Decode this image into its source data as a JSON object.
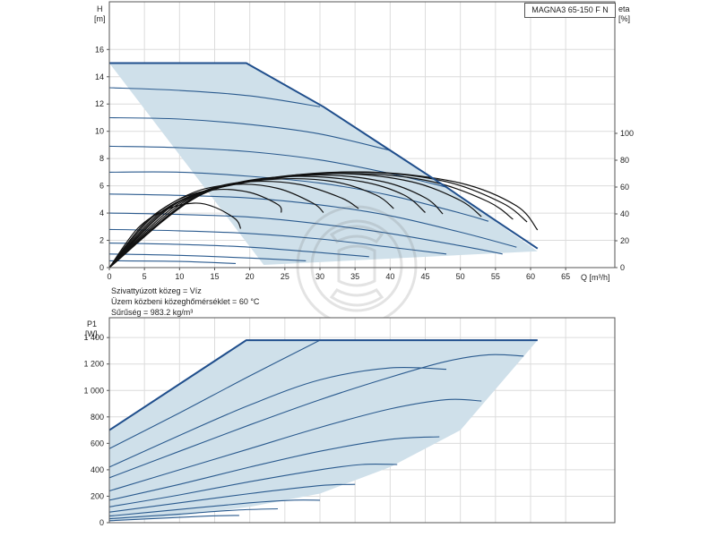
{
  "model_label": "MAGNA3 65-150 F N",
  "fluid_info": [
    "Szivattyúzott közeg = Víz",
    "Üzem közbeni közeghőmérséklet = 60 °C",
    "Sűrűség = 983.2 kg/m³"
  ],
  "colors": {
    "envelope_fill": "#cfe0ea",
    "envelope_line": "#1f4e8c",
    "curve": "#2a5a8e",
    "efficiency": "#111111",
    "frame": "#555555",
    "grid": "#dcdcdc"
  },
  "chart_data": [
    {
      "type": "line",
      "xlabel": "Q [m³/h]",
      "ylabel_line1": "H",
      "ylabel_line2": "[m]",
      "y2label_line1": "eta",
      "y2label_line2": "[%]",
      "xlim": [
        0,
        72
      ],
      "ylim": [
        0,
        19.5
      ],
      "y2lim": [
        0,
        100
      ],
      "x_ticks": [
        0,
        5,
        10,
        15,
        20,
        25,
        30,
        35,
        40,
        45,
        50,
        55,
        60,
        65
      ],
      "y_ticks": [
        0,
        2,
        4,
        6,
        8,
        10,
        12,
        14,
        16
      ],
      "y2_ticks": [
        0,
        20,
        40,
        60,
        80,
        100
      ],
      "grid": true,
      "envelope": [
        [
          0,
          15
        ],
        [
          19.5,
          15
        ],
        [
          30.5,
          11.8
        ],
        [
          48,
          5.9
        ],
        [
          61,
          1.2
        ],
        [
          22,
          0.2
        ]
      ],
      "envelope_top": [
        [
          0,
          15
        ],
        [
          19.5,
          15
        ],
        [
          30.5,
          11.8
        ],
        [
          40,
          8.6
        ],
        [
          48,
          5.9
        ],
        [
          54,
          3.8
        ],
        [
          61,
          1.4
        ]
      ],
      "speed_curves": [
        {
          "name": "",
          "points": [
            [
              0,
              13.2
            ],
            [
              10,
              13.0
            ],
            [
              20,
              12.6
            ],
            [
              30,
              11.8
            ]
          ]
        },
        {
          "name": "",
          "points": [
            [
              0,
              11.0
            ],
            [
              10,
              10.9
            ],
            [
              20,
              10.5
            ],
            [
              30,
              9.8
            ],
            [
              40,
              8.6
            ]
          ]
        },
        {
          "name": "",
          "points": [
            [
              0,
              8.9
            ],
            [
              10,
              8.8
            ],
            [
              20,
              8.5
            ],
            [
              30,
              7.9
            ],
            [
              40,
              6.9
            ],
            [
              48,
              5.9
            ]
          ]
        },
        {
          "name": "",
          "points": [
            [
              0,
              7.0
            ],
            [
              10,
              7.0
            ],
            [
              20,
              6.7
            ],
            [
              30,
              6.2
            ],
            [
              40,
              5.3
            ],
            [
              50,
              4.0
            ],
            [
              54,
              3.4
            ]
          ]
        },
        {
          "name": "",
          "points": [
            [
              0,
              5.4
            ],
            [
              10,
              5.3
            ],
            [
              20,
              5.1
            ],
            [
              30,
              4.6
            ],
            [
              40,
              3.8
            ],
            [
              50,
              2.6
            ],
            [
              58,
              1.5
            ]
          ]
        },
        {
          "name": "",
          "points": [
            [
              0,
              4.0
            ],
            [
              10,
              3.9
            ],
            [
              20,
              3.7
            ],
            [
              30,
              3.2
            ],
            [
              40,
              2.5
            ],
            [
              50,
              1.6
            ],
            [
              56,
              1.0
            ]
          ]
        },
        {
          "name": "",
          "points": [
            [
              0,
              2.8
            ],
            [
              10,
              2.7
            ],
            [
              20,
              2.5
            ],
            [
              30,
              2.1
            ],
            [
              40,
              1.5
            ],
            [
              48,
              1.0
            ]
          ]
        },
        {
          "name": "",
          "points": [
            [
              0,
              1.8
            ],
            [
              10,
              1.7
            ],
            [
              20,
              1.5
            ],
            [
              30,
              1.1
            ],
            [
              37,
              0.8
            ]
          ]
        },
        {
          "name": "",
          "points": [
            [
              0,
              1.0
            ],
            [
              10,
              0.9
            ],
            [
              20,
              0.7
            ],
            [
              28,
              0.5
            ]
          ]
        },
        {
          "name": "",
          "points": [
            [
              0,
              0.5
            ],
            [
              10,
              0.45
            ],
            [
              18,
              0.3
            ]
          ]
        }
      ],
      "efficiency_curves": [
        {
          "name": "",
          "points": [
            [
              0,
              0
            ],
            [
              4,
              29
            ],
            [
              8,
              43
            ],
            [
              12,
              48
            ],
            [
              15,
              45
            ],
            [
              18,
              36
            ],
            [
              18.7,
              29
            ]
          ]
        },
        {
          "name": "",
          "points": [
            [
              0,
              0
            ],
            [
              5,
              33
            ],
            [
              10,
              51
            ],
            [
              15,
              58
            ],
            [
              20,
              56
            ],
            [
              24,
              47
            ],
            [
              24.5,
              41
            ]
          ]
        },
        {
          "name": "",
          "points": [
            [
              0,
              0
            ],
            [
              6,
              37
            ],
            [
              12,
              56
            ],
            [
              18,
              62
            ],
            [
              24,
              59
            ],
            [
              29,
              48
            ],
            [
              30.5,
              41
            ]
          ]
        },
        {
          "name": "",
          "points": [
            [
              0,
              0
            ],
            [
              7,
              40
            ],
            [
              14,
              58
            ],
            [
              20,
              64
            ],
            [
              27,
              62
            ],
            [
              33,
              52
            ],
            [
              35.5,
              44
            ]
          ]
        },
        {
          "name": "",
          "points": [
            [
              0,
              0
            ],
            [
              8,
              43
            ],
            [
              16,
              60
            ],
            [
              24,
              66
            ],
            [
              32,
              64
            ],
            [
              38,
              54
            ],
            [
              40.5,
              44
            ]
          ]
        },
        {
          "name": "",
          "points": [
            [
              0,
              0
            ],
            [
              9,
              46
            ],
            [
              18,
              63
            ],
            [
              27,
              68
            ],
            [
              36,
              64
            ],
            [
              42,
              54
            ],
            [
              45,
              41
            ]
          ]
        },
        {
          "name": "",
          "points": [
            [
              0,
              0
            ],
            [
              10,
              48
            ],
            [
              20,
              64
            ],
            [
              30,
              69
            ],
            [
              39,
              64
            ],
            [
              45,
              52
            ],
            [
              47.5,
              40
            ]
          ]
        },
        {
          "name": "",
          "points": [
            [
              0,
              0
            ],
            [
              11,
              50
            ],
            [
              22,
              66
            ],
            [
              33,
              70
            ],
            [
              43,
              64
            ],
            [
              50,
              50
            ],
            [
              53,
              38
            ]
          ]
        },
        {
          "name": "",
          "points": [
            [
              0,
              0
            ],
            [
              12,
              52
            ],
            [
              24,
              67
            ],
            [
              36,
              70
            ],
            [
              46,
              64
            ],
            [
              54,
              49
            ],
            [
              57.5,
              36
            ]
          ]
        },
        {
          "name": "",
          "points": [
            [
              0,
              0
            ],
            [
              12.5,
              53
            ],
            [
              25,
              68
            ],
            [
              37,
              71
            ],
            [
              48,
              64
            ],
            [
              56,
              48
            ],
            [
              59.5,
              34
            ]
          ]
        },
        {
          "name": "",
          "points": [
            [
              0,
              0
            ],
            [
              13,
              54
            ],
            [
              26,
              68
            ],
            [
              38,
              71
            ],
            [
              50,
              63
            ],
            [
              58,
              46
            ],
            [
              61,
              28
            ]
          ]
        }
      ]
    },
    {
      "type": "line",
      "ylabel_line1": "P1",
      "ylabel_line2": "[W]",
      "xlim": [
        0,
        72
      ],
      "ylim": [
        0,
        1550
      ],
      "y_ticks": [
        0,
        200,
        400,
        600,
        800,
        1000,
        1200,
        1400
      ],
      "y_tick_labels": [
        "0",
        "200",
        "400",
        "600",
        "800",
        "1 000",
        "1 200",
        "1 400"
      ],
      "grid": true,
      "envelope": [
        [
          0,
          700
        ],
        [
          19.5,
          1380
        ],
        [
          61,
          1380
        ],
        [
          50,
          700
        ],
        [
          40,
          420
        ],
        [
          30,
          220
        ],
        [
          20,
          120
        ],
        [
          10,
          50
        ],
        [
          0,
          10
        ]
      ],
      "envelope_top": [
        [
          0,
          700
        ],
        [
          19.5,
          1380
        ],
        [
          61,
          1380
        ]
      ],
      "power_curves": [
        {
          "name": "",
          "points": [
            [
              0,
              560
            ],
            [
              10,
              830
            ],
            [
              20,
              1110
            ],
            [
              30,
              1380
            ]
          ]
        },
        {
          "name": "",
          "points": [
            [
              0,
              420
            ],
            [
              10,
              660
            ],
            [
              20,
              890
            ],
            [
              30,
              1080
            ],
            [
              40,
              1170
            ],
            [
              48,
              1160
            ]
          ]
        },
        {
          "name": "",
          "points": [
            [
              0,
              340
            ],
            [
              10,
              540
            ],
            [
              20,
              740
            ],
            [
              30,
              930
            ],
            [
              40,
              1100
            ],
            [
              48,
              1220
            ],
            [
              54,
              1270
            ],
            [
              59,
              1260
            ]
          ]
        },
        {
          "name": "",
          "points": [
            [
              0,
              240
            ],
            [
              10,
              400
            ],
            [
              20,
              560
            ],
            [
              30,
              720
            ],
            [
              40,
              860
            ],
            [
              48,
              930
            ],
            [
              53,
              920
            ]
          ]
        },
        {
          "name": "",
          "points": [
            [
              0,
              170
            ],
            [
              10,
              290
            ],
            [
              20,
              420
            ],
            [
              30,
              540
            ],
            [
              40,
              630
            ],
            [
              47,
              650
            ]
          ]
        },
        {
          "name": "",
          "points": [
            [
              0,
              120
            ],
            [
              10,
              210
            ],
            [
              20,
              310
            ],
            [
              30,
              400
            ],
            [
              36,
              440
            ],
            [
              41,
              440
            ]
          ]
        },
        {
          "name": "",
          "points": [
            [
              0,
              80
            ],
            [
              10,
              150
            ],
            [
              20,
              220
            ],
            [
              30,
              280
            ],
            [
              35,
              290
            ]
          ]
        },
        {
          "name": "",
          "points": [
            [
              0,
              50
            ],
            [
              10,
              100
            ],
            [
              20,
              150
            ],
            [
              26,
              170
            ],
            [
              30,
              170
            ]
          ]
        },
        {
          "name": "",
          "points": [
            [
              0,
              30
            ],
            [
              10,
              65
            ],
            [
              18,
              95
            ],
            [
              24,
              105
            ]
          ]
        },
        {
          "name": "",
          "points": [
            [
              0,
              15
            ],
            [
              8,
              35
            ],
            [
              14,
              50
            ],
            [
              18.5,
              55
            ]
          ]
        }
      ]
    }
  ]
}
